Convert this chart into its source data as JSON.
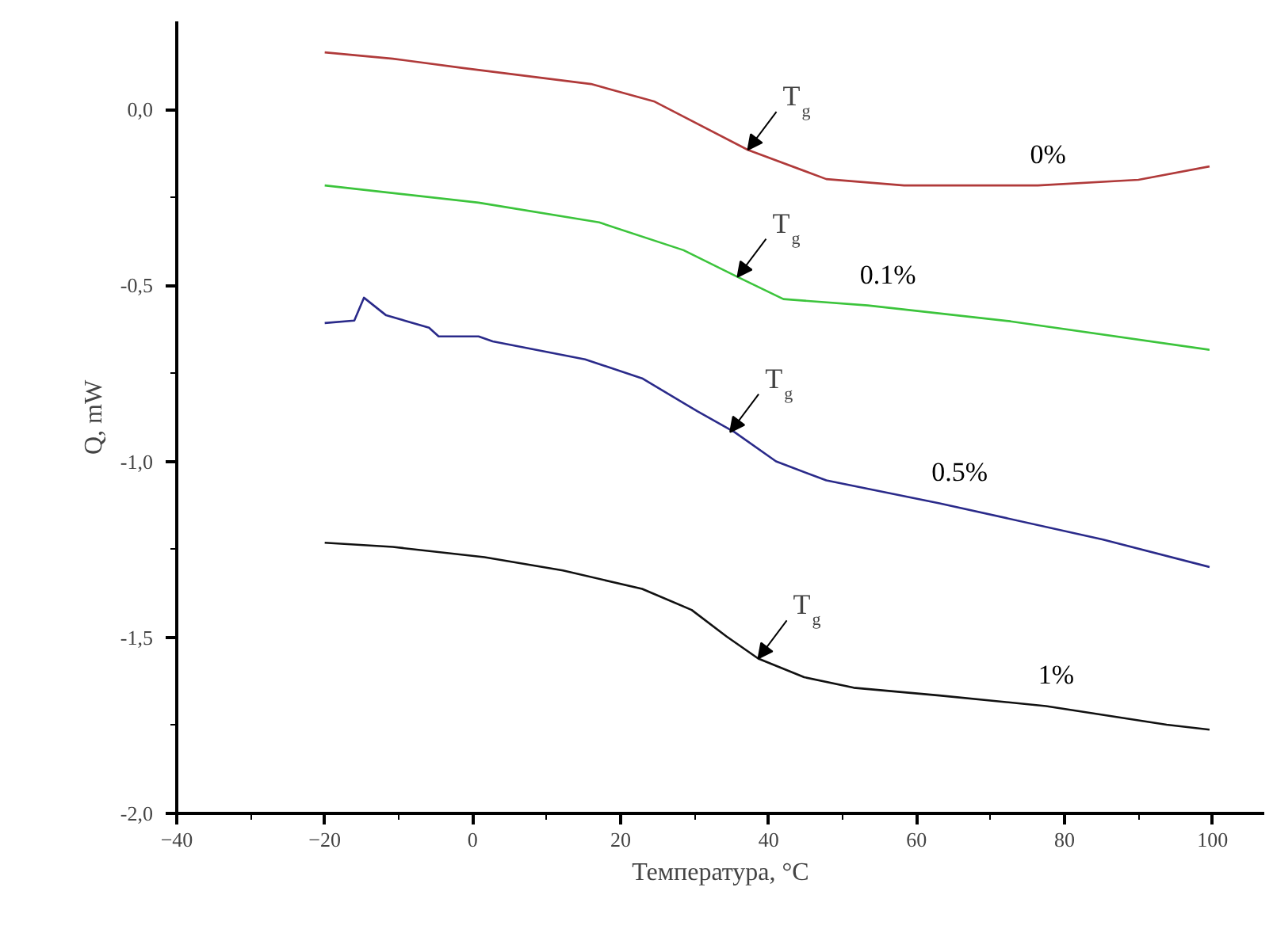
{
  "chart_data": {
    "type": "line",
    "xlabel": "Температура, °C",
    "ylabel": "Q, mW",
    "xlim": [
      -40,
      107
    ],
    "ylim": [
      -2.0,
      0.25
    ],
    "xticks": [
      -40,
      {
        "value": -30,
        "label": null
      },
      -20,
      {
        "value": -10,
        "label": null
      },
      0,
      {
        "value": 10,
        "label": null
      },
      20,
      {
        "value": 30,
        "label": null
      },
      40,
      {
        "value": 50,
        "label": null
      },
      60,
      {
        "value": 70,
        "label": null
      },
      80,
      {
        "value": 90,
        "label": null
      },
      100
    ],
    "yticks": [
      {
        "value": -2.0,
        "label": "-2,0"
      },
      {
        "value": -1.75,
        "label": null
      },
      {
        "value": -1.5,
        "label": "-1,5"
      },
      {
        "value": -1.25,
        "label": null
      },
      {
        "value": -1.0,
        "label": "-1,0"
      },
      {
        "value": -0.75,
        "label": null
      },
      {
        "value": -0.5,
        "label": "-0,5"
      },
      {
        "value": -0.25,
        "label": null
      },
      {
        "value": 0.0,
        "label": "0,0"
      }
    ],
    "grid": false,
    "marker": "none",
    "line_style": "solid",
    "series": [
      {
        "name": "0%",
        "color": "#b03a3a",
        "x": [
          -20,
          -10.8,
          -1.1,
          16.0,
          24.6,
          37.2,
          47.8,
          58.3,
          76.4,
          90,
          99.6
        ],
        "values": [
          0.162,
          0.144,
          0.117,
          0.072,
          0.022,
          -0.115,
          -0.198,
          -0.216,
          -0.216,
          -0.2,
          -0.162
        ]
      },
      {
        "name": "0.1%",
        "color": "#3cc43c",
        "x": [
          -20,
          0.8,
          17.1,
          28.5,
          35.8,
          42,
          53.4,
          72.7,
          99.6
        ],
        "values": [
          -0.216,
          -0.265,
          -0.321,
          -0.4,
          -0.476,
          -0.539,
          -0.557,
          -0.602,
          -0.683
        ]
      },
      {
        "name": "0.5%",
        "color": "#2a2a8a",
        "x": [
          -20,
          -16,
          -14.7,
          -11.7,
          -5.9,
          -4.6,
          0.8,
          2.7,
          15.2,
          22.9,
          30.4,
          35.4,
          41,
          47.8,
          63.1,
          85.2,
          99.6
        ],
        "values": [
          -0.607,
          -0.6,
          -0.535,
          -0.585,
          -0.62,
          -0.645,
          -0.645,
          -0.659,
          -0.71,
          -0.764,
          -0.858,
          -0.917,
          -1.0,
          -1.054,
          -1.119,
          -1.222,
          -1.3
        ]
      },
      {
        "name": "1%",
        "color": "#111111",
        "x": [
          -20,
          -10.8,
          1.6,
          12.2,
          22.9,
          29.6,
          34.3,
          38.6,
          44.8,
          51.5,
          63.1,
          77.5,
          93.8,
          99.6
        ],
        "values": [
          -1.231,
          -1.243,
          -1.272,
          -1.31,
          -1.362,
          -1.422,
          -1.497,
          -1.56,
          -1.613,
          -1.643,
          -1.665,
          -1.695,
          -1.748,
          -1.762
        ]
      }
    ],
    "annotations": [
      {
        "text": "T$_{g}$",
        "x": 37.2,
        "y": -0.115
      },
      {
        "text": "T$_{g}$",
        "x": 35.8,
        "y": -0.476
      },
      {
        "text": "T$_{g}$",
        "x": 34.8,
        "y": -0.917
      },
      {
        "text": "T$_{g}$",
        "x": 38.6,
        "y": -1.56
      }
    ]
  }
}
